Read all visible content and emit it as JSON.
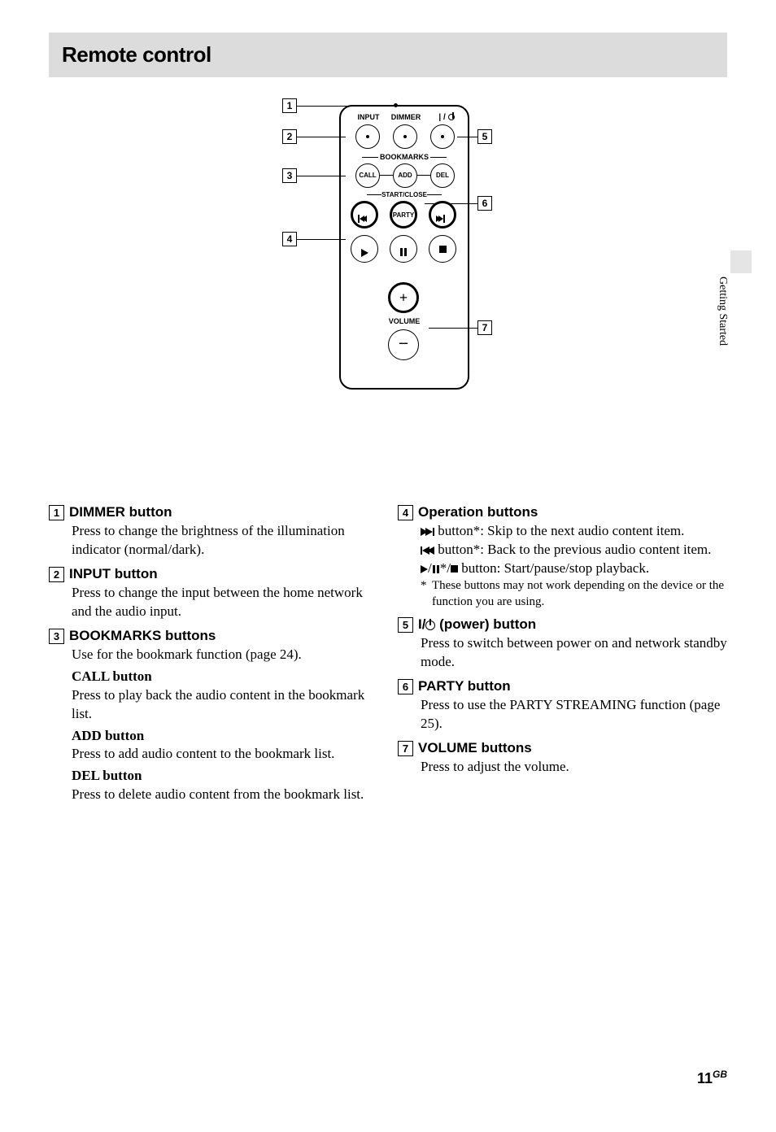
{
  "header_title": "Remote control",
  "side_label": "Getting Started",
  "page_number": "11",
  "page_suffix": "GB",
  "remote_labels": {
    "input": "INPUT",
    "dimmer": "DIMMER",
    "power": "| /",
    "bookmarks": "BOOKMARKS",
    "call": "CALL",
    "add": "ADD",
    "del": "DEL",
    "startclose": "START/CLOSE",
    "party": "PARTY",
    "volume": "VOLUME"
  },
  "callouts": {
    "c1": "1",
    "c2": "2",
    "c3": "3",
    "c4": "4",
    "c5": "5",
    "c6": "6",
    "c7": "7"
  },
  "items_left": [
    {
      "num": "1",
      "title": "DIMMER button",
      "body": [
        {
          "text": "Press to change the brightness of the illumination indicator (normal/dark)."
        }
      ]
    },
    {
      "num": "2",
      "title": "INPUT button",
      "body": [
        {
          "text": "Press to change the input between the home network and the audio input."
        }
      ]
    },
    {
      "num": "3",
      "title": "BOOKMARKS buttons",
      "body": [
        {
          "text": "Use for the bookmark function (page 24)."
        },
        {
          "sub": "CALL button"
        },
        {
          "text": "Press to play back the audio content in the bookmark list."
        },
        {
          "sub": "ADD button"
        },
        {
          "text": "Press to add audio content to the bookmark list."
        },
        {
          "sub": "DEL button"
        },
        {
          "text": "Press to delete audio content from the bookmark list."
        }
      ]
    }
  ],
  "items_right": [
    {
      "num": "4",
      "title": "Operation buttons",
      "body": [
        {
          "sym": "next",
          "text": " button*: Skip to the next audio content item."
        },
        {
          "sym": "prev",
          "text": " button*: Back to the previous audio content item."
        },
        {
          "sym": "pps",
          "text": " button: Start/pause/stop playback."
        }
      ],
      "footnote": {
        "star": "*",
        "text": "These buttons may not work depending on the device or the function you are using."
      }
    },
    {
      "num": "5",
      "title_sym": "power",
      "title_text": " (power) button",
      "title_prefix": "I/",
      "body": [
        {
          "text": "Press to switch between power on and network standby mode."
        }
      ]
    },
    {
      "num": "6",
      "title": "PARTY button",
      "body": [
        {
          "text": "Press to use the PARTY STREAMING function (page 25)."
        }
      ]
    },
    {
      "num": "7",
      "title": "VOLUME buttons",
      "body": [
        {
          "text": "Press to adjust the volume."
        }
      ]
    }
  ],
  "colors": {
    "header_bg": "#dcdcdc",
    "text": "#000000",
    "bg": "#ffffff",
    "side_bg": "#e5e5e5"
  }
}
